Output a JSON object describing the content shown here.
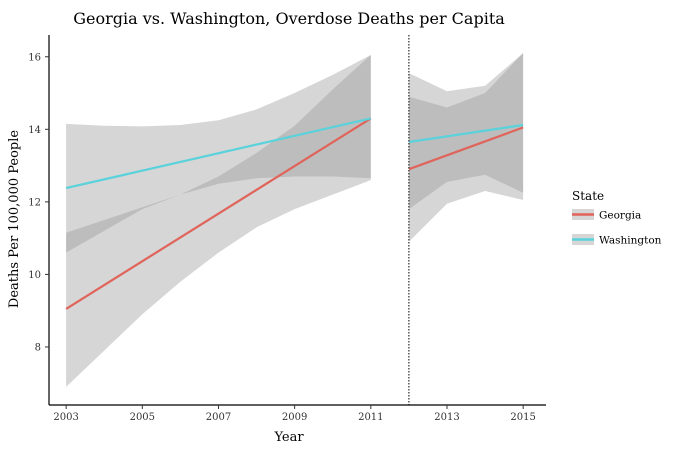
{
  "chart_data": {
    "type": "line",
    "title": "Georgia vs. Washington, Overdose Deaths per Capita",
    "xlabel": "Year",
    "ylabel": "Deaths Per 100,000 People",
    "xlim": [
      2002.55,
      2015.6
    ],
    "ylim": [
      6.4,
      16.6
    ],
    "x_ticks": [
      2003,
      2005,
      2007,
      2009,
      2011,
      2013,
      2015
    ],
    "y_ticks": [
      8,
      10,
      12,
      14,
      16
    ],
    "policy_line_x": 2012,
    "grid": false,
    "legend": {
      "title": "State",
      "placement": "right",
      "items": [
        {
          "label": "Georgia",
          "color": "#E0645A"
        },
        {
          "label": "Washington",
          "color": "#5AD2DC"
        }
      ]
    },
    "series": [
      {
        "name": "Georgia",
        "color": "#E0645A",
        "segments": [
          {
            "x": [
              2003,
              2011
            ],
            "y": [
              9.05,
              14.3
            ],
            "band_x": [
              2003,
              2004,
              2005,
              2006,
              2007,
              2008,
              2009,
              2010,
              2011
            ],
            "band_lower": [
              6.9,
              7.9,
              8.9,
              9.8,
              10.6,
              11.3,
              11.8,
              12.2,
              12.6
            ],
            "band_upper": [
              11.15,
              11.5,
              11.85,
              12.2,
              12.7,
              13.35,
              14.1,
              15.1,
              16.05
            ]
          },
          {
            "x": [
              2012,
              2015
            ],
            "y": [
              12.9,
              14.05
            ],
            "band_x": [
              2012,
              2013,
              2014,
              2015
            ],
            "band_lower": [
              10.9,
              11.95,
              12.3,
              12.05
            ],
            "band_upper": [
              14.9,
              14.6,
              15.0,
              16.1
            ]
          }
        ]
      },
      {
        "name": "Washington",
        "color": "#5AD2DC",
        "segments": [
          {
            "x": [
              2003,
              2011
            ],
            "y": [
              12.38,
              14.3
            ],
            "band_x": [
              2003,
              2004,
              2005,
              2006,
              2007,
              2008,
              2009,
              2010,
              2011
            ],
            "band_lower": [
              10.6,
              11.2,
              11.8,
              12.2,
              12.5,
              12.65,
              12.7,
              12.7,
              12.65
            ],
            "band_upper": [
              14.15,
              14.1,
              14.08,
              14.12,
              14.25,
              14.55,
              15.0,
              15.5,
              16.05
            ]
          },
          {
            "x": [
              2012,
              2015
            ],
            "y": [
              13.65,
              14.12
            ],
            "band_x": [
              2012,
              2013,
              2014,
              2015
            ],
            "band_lower": [
              11.8,
              12.55,
              12.75,
              12.25
            ],
            "band_upper": [
              15.55,
              15.05,
              15.2,
              16.1
            ]
          }
        ]
      }
    ]
  }
}
